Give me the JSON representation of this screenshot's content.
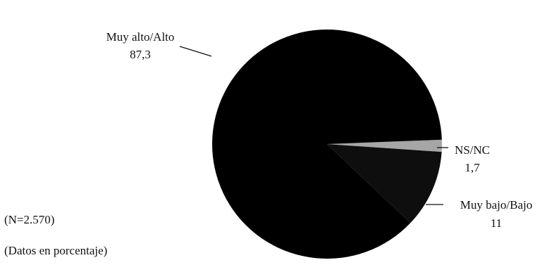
{
  "chart_data": {
    "type": "pie",
    "slices": [
      {
        "label": "Muy alto/Alto",
        "value": 87.3,
        "value_label": "87,3",
        "color": "#000000"
      },
      {
        "label": "NS/NC",
        "value": 1.7,
        "value_label": "1,7",
        "color": "#a6a6a6"
      },
      {
        "label": "Muy bajo/Bajo",
        "value": 11,
        "value_label": "11",
        "color": "#0e0e0e"
      }
    ]
  },
  "notes": {
    "sample": "(N=2.570)",
    "units": "(Datos en porcentaje)"
  }
}
